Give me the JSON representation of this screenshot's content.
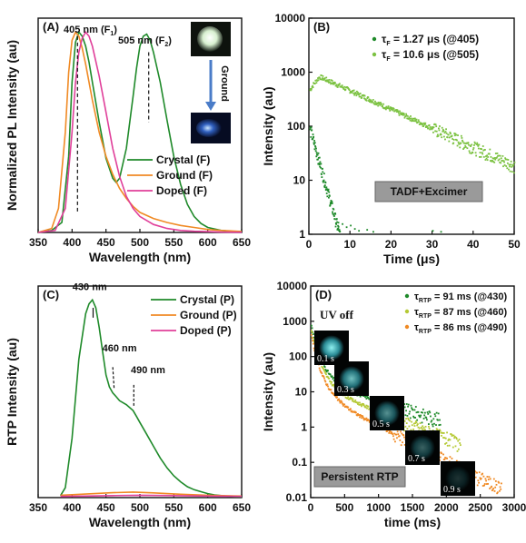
{
  "chart_data": [
    {
      "panel": "(A)",
      "type": "line",
      "xlabel": "Wavelength (nm)",
      "ylabel": "Normalized PL Intensity (au)",
      "xlim": [
        350,
        650
      ],
      "xticks": [
        "350",
        "400",
        "450",
        "500",
        "550",
        "600",
        "650"
      ],
      "ylim": [
        0,
        1.07
      ],
      "legend": "right",
      "annotations": {
        "peak1": "405 nm",
        "peak1_sub": "(F",
        "peak1_idx": "1",
        "peak2": "505 nm",
        "peak2_sub": "(F",
        "peak2_idx": "2",
        "close": ")",
        "arrow_label": "Ground"
      },
      "series": [
        {
          "name": "Crystal (F)",
          "color": "#1f8a2a",
          "x": [
            350,
            370,
            385,
            395,
            400,
            405,
            410,
            415,
            420,
            425,
            430,
            440,
            450,
            460,
            465,
            470,
            480,
            490,
            495,
            500,
            505,
            510,
            515,
            520,
            530,
            540,
            550,
            560,
            570,
            580,
            590,
            600,
            620,
            640,
            650
          ],
          "y": [
            0,
            0.01,
            0.05,
            0.38,
            0.75,
            0.95,
            1.0,
            0.98,
            0.93,
            0.85,
            0.75,
            0.55,
            0.37,
            0.27,
            0.25,
            0.27,
            0.42,
            0.68,
            0.82,
            0.93,
            0.98,
            0.99,
            0.96,
            0.9,
            0.75,
            0.56,
            0.38,
            0.24,
            0.14,
            0.08,
            0.045,
            0.025,
            0.01,
            0.004,
            0.002
          ]
        },
        {
          "name": "Ground (F)",
          "color": "#f08a24",
          "x": [
            350,
            370,
            380,
            390,
            395,
            400,
            405,
            410,
            415,
            420,
            430,
            440,
            450,
            460,
            470,
            480,
            490,
            500,
            520,
            540,
            560,
            580,
            600,
            620,
            650
          ],
          "y": [
            0,
            0.02,
            0.12,
            0.5,
            0.8,
            0.96,
            1.0,
            0.98,
            0.92,
            0.84,
            0.66,
            0.5,
            0.38,
            0.29,
            0.22,
            0.17,
            0.13,
            0.1,
            0.07,
            0.05,
            0.035,
            0.025,
            0.015,
            0.01,
            0.005
          ]
        },
        {
          "name": "Doped (F)",
          "color": "#e0409a",
          "x": [
            350,
            375,
            390,
            400,
            405,
            410,
            415,
            420,
            425,
            430,
            440,
            450,
            460,
            470,
            480,
            490,
            500,
            520,
            540,
            560,
            580,
            600,
            620,
            650
          ],
          "y": [
            0,
            0.01,
            0.12,
            0.5,
            0.75,
            0.9,
            0.97,
            1.0,
            0.98,
            0.93,
            0.78,
            0.6,
            0.42,
            0.28,
            0.18,
            0.12,
            0.08,
            0.04,
            0.02,
            0.01,
            0.006,
            0.004,
            0.002,
            0.001
          ]
        }
      ]
    },
    {
      "panel": "(B)",
      "type": "scatter",
      "xlabel": "Time (μs)",
      "ylabel": "Intensity (au)",
      "xlim": [
        0,
        50
      ],
      "xticks": [
        "0",
        "10",
        "20",
        "30",
        "40",
        "50"
      ],
      "ylim": [
        1,
        10000
      ],
      "yscale": "log",
      "yticks": [
        "1",
        "10",
        "100",
        "1000",
        "10000"
      ],
      "legend": "top-right",
      "note": "TADF+Excimer",
      "series": [
        {
          "name": "τ",
          "sub": "F",
          "label_rest": " = 1.27 μs (@405)",
          "color": "#1f8a2a",
          "tau": 1.27,
          "amplitude": 100
        },
        {
          "name": "τ",
          "sub": "F",
          "label_rest": " = 10.6 μs (@505)",
          "color": "#7cc242",
          "tau": 10.6,
          "amplitude": 850
        }
      ]
    },
    {
      "panel": "(C)",
      "type": "line",
      "xlabel": "Wavelength (nm)",
      "ylabel": "RTP Intensity (au)",
      "xlim": [
        350,
        650
      ],
      "xticks": [
        "350",
        "400",
        "450",
        "500",
        "550",
        "600",
        "650"
      ],
      "ylim": [
        0,
        1.07
      ],
      "legend": "top-right",
      "annotations": {
        "p1": "430 nm",
        "p2": "460 nm",
        "p3": "490 nm"
      },
      "series": [
        {
          "name": "Crystal (P)",
          "color": "#1f8a2a",
          "x": [
            383,
            390,
            400,
            410,
            420,
            425,
            430,
            435,
            440,
            445,
            450,
            455,
            460,
            465,
            470,
            480,
            490,
            495,
            500,
            510,
            520,
            530,
            540,
            550,
            560,
            570,
            580,
            590,
            600,
            610,
            620,
            630,
            640,
            650
          ],
          "y": [
            0.01,
            0.05,
            0.3,
            0.7,
            0.93,
            0.98,
            1.0,
            0.96,
            0.86,
            0.74,
            0.62,
            0.56,
            0.53,
            0.51,
            0.49,
            0.47,
            0.44,
            0.41,
            0.38,
            0.32,
            0.26,
            0.2,
            0.15,
            0.11,
            0.08,
            0.055,
            0.04,
            0.03,
            0.02,
            0.014,
            0.01,
            0.007,
            0.005,
            0.004
          ]
        },
        {
          "name": "Ground (P)",
          "color": "#f08a24",
          "x": [
            383,
            420,
            460,
            490,
            520,
            560,
            600,
            650
          ],
          "y": [
            0.012,
            0.018,
            0.025,
            0.028,
            0.024,
            0.017,
            0.012,
            0.008
          ]
        },
        {
          "name": "Doped (P)",
          "color": "#e0409a",
          "x": [
            383,
            420,
            460,
            500,
            550,
            600,
            650
          ],
          "y": [
            0.006,
            0.008,
            0.01,
            0.012,
            0.01,
            0.008,
            0.006
          ]
        }
      ]
    },
    {
      "panel": "(D)",
      "type": "scatter",
      "xlabel": "time (ms)",
      "ylabel": "Intensity (au)",
      "xlim": [
        0,
        3000
      ],
      "xticks": [
        "0",
        "500",
        "1000",
        "1500",
        "2000",
        "2500",
        "3000"
      ],
      "ylim": [
        0.01,
        10000
      ],
      "yscale": "log",
      "yticks": [
        "0.01",
        "0.1",
        "1",
        "10",
        "100",
        "1000",
        "10000"
      ],
      "legend": "top-right",
      "note": "Persistent RTP",
      "photo_title": "UV off",
      "photos": [
        "0.1 s",
        "0.3 s",
        "0.5 s",
        "0.7 s",
        "0.9 s"
      ],
      "series": [
        {
          "name": "τ",
          "sub": "RTP",
          "label_rest": " = 91 ms (@430)",
          "color": "#1f8a2a",
          "amplitude": 800,
          "tau": 91
        },
        {
          "name": "τ",
          "sub": "RTP",
          "label_rest": " = 87 ms (@460)",
          "color": "#b5c935",
          "amplitude": 600,
          "tau": 87
        },
        {
          "name": "τ",
          "sub": "RTP",
          "label_rest": " = 86 ms (@490)",
          "color": "#f08a24",
          "amplitude": 400,
          "tau": 86
        }
      ]
    }
  ]
}
